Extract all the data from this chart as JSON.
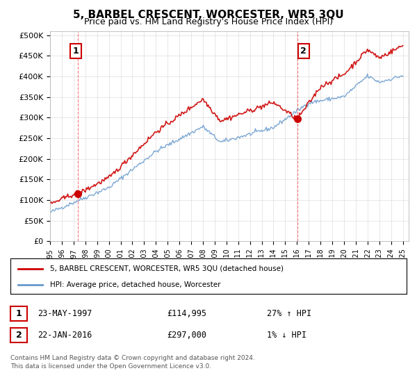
{
  "title": "5, BARBEL CRESCENT, WORCESTER, WR5 3QU",
  "subtitle": "Price paid vs. HM Land Registry's House Price Index (HPI)",
  "xlim": [
    1995.0,
    2025.5
  ],
  "ylim": [
    0,
    510000
  ],
  "yticks": [
    0,
    50000,
    100000,
    150000,
    200000,
    250000,
    300000,
    350000,
    400000,
    450000,
    500000
  ],
  "ytick_labels": [
    "£0",
    "£50K",
    "£100K",
    "£150K",
    "£200K",
    "£250K",
    "£300K",
    "£350K",
    "£400K",
    "£450K",
    "£500K"
  ],
  "xtick_years": [
    1995,
    1996,
    1997,
    1998,
    1999,
    2000,
    2001,
    2002,
    2003,
    2004,
    2005,
    2006,
    2007,
    2008,
    2009,
    2010,
    2011,
    2012,
    2013,
    2014,
    2015,
    2016,
    2017,
    2018,
    2019,
    2020,
    2021,
    2022,
    2023,
    2024,
    2025
  ],
  "sale1_x": 1997.39,
  "sale1_y": 114995,
  "sale1_label": "1",
  "sale1_date": "23-MAY-1997",
  "sale1_price": "£114,995",
  "sale1_hpi": "27% ↑ HPI",
  "sale2_x": 2016.055,
  "sale2_y": 297000,
  "sale2_label": "2",
  "sale2_date": "22-JAN-2016",
  "sale2_price": "£297,000",
  "sale2_hpi": "1% ↓ HPI",
  "legend_entry1": "5, BARBEL CRESCENT, WORCESTER, WR5 3QU (detached house)",
  "legend_entry2": "HPI: Average price, detached house, Worcester",
  "footer1": "Contains HM Land Registry data © Crown copyright and database right 2024.",
  "footer2": "This data is licensed under the Open Government Licence v3.0.",
  "red_color": "#cc0000",
  "blue_color": "#6699cc",
  "vline_color": "#ff6666",
  "background_color": "#ffffff",
  "grid_color": "#dddddd"
}
